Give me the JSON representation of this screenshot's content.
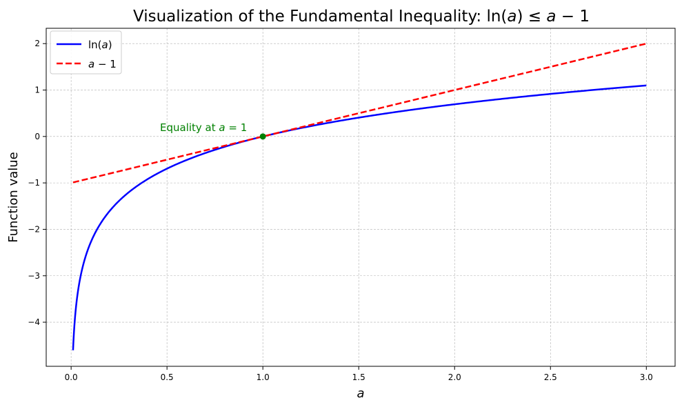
{
  "chart_data": {
    "type": "line",
    "title": "Visualization of the Fundamental Inequality: ln(a) ≤ a − 1",
    "xlabel": "a",
    "ylabel": "Function value",
    "xlim": [
      -0.13,
      3.15
    ],
    "ylim": [
      -4.95,
      2.33
    ],
    "x_ticks": [
      0.0,
      0.5,
      1.0,
      1.5,
      2.0,
      2.5,
      3.0
    ],
    "x_tick_labels": [
      "0.0",
      "0.5",
      "1.0",
      "1.5",
      "2.0",
      "2.5",
      "3.0"
    ],
    "y_ticks": [
      -4,
      -3,
      -2,
      -1,
      0,
      1,
      2
    ],
    "y_tick_labels": [
      "−4",
      "−3",
      "−2",
      "−1",
      "0",
      "1",
      "2"
    ],
    "grid": true,
    "legend_position": "top-left",
    "series": [
      {
        "name": "ln(a)",
        "color": "#0000ff",
        "style": "solid",
        "function": "ln(a)",
        "x_range": [
          0.01,
          3.0
        ],
        "points": [
          [
            0.01,
            -4.605
          ],
          [
            0.02,
            -3.912
          ],
          [
            0.05,
            -2.996
          ],
          [
            0.1,
            -2.303
          ],
          [
            0.2,
            -1.609
          ],
          [
            0.3,
            -1.204
          ],
          [
            0.5,
            -0.693
          ],
          [
            0.75,
            -0.288
          ],
          [
            1.0,
            0.0
          ],
          [
            1.5,
            0.405
          ],
          [
            2.0,
            0.693
          ],
          [
            2.5,
            0.916
          ],
          [
            3.0,
            1.099
          ]
        ]
      },
      {
        "name": "a − 1",
        "color": "#ff0000",
        "style": "dashed",
        "function": "a - 1",
        "x_range": [
          0.01,
          3.0
        ],
        "points": [
          [
            0.01,
            -0.99
          ],
          [
            1.0,
            0.0
          ],
          [
            3.0,
            2.0
          ]
        ]
      }
    ],
    "annotations": [
      {
        "text": "Equality at a = 1",
        "x": 1.0,
        "y": 0.0,
        "color": "#008000",
        "marker_color": "#008000"
      }
    ]
  }
}
